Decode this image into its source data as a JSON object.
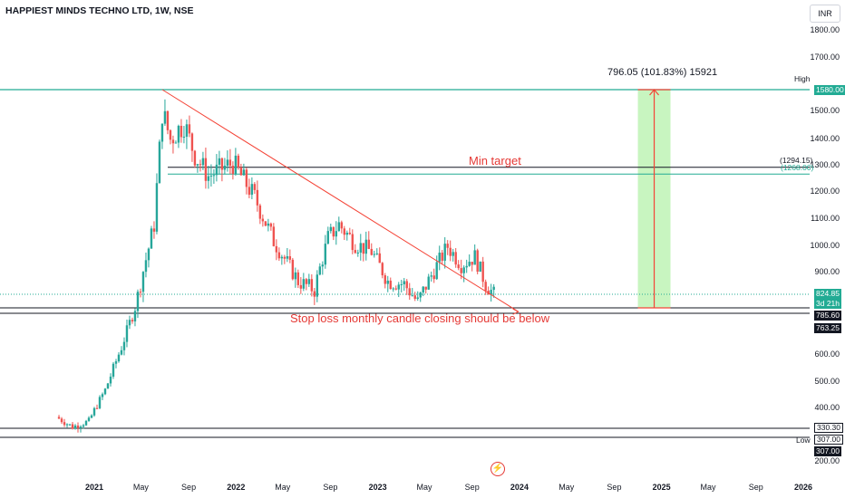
{
  "header": {
    "title": "HAPPIEST MINDS TECHNO LTD, 1W, NSE",
    "currency": "INR"
  },
  "chart_data": {
    "type": "candlestick",
    "symbol": "HAPPIEST MINDS TECHNO LTD",
    "interval": "1W",
    "exchange": "NSE",
    "currency": "INR",
    "y_axis": {
      "ticks": [
        1800,
        1700,
        1500,
        1400,
        1300,
        1200,
        1100,
        1000,
        900,
        600,
        500,
        400,
        200
      ],
      "tick_labels": [
        "1800.00",
        "1700.00",
        "1500.00",
        "1400.00",
        "1300.00",
        "1200.00",
        "1100.00",
        "1000.00",
        "900.00",
        "600.00",
        "500.00",
        "400.00",
        "200.00"
      ],
      "range": [
        190,
        1850
      ]
    },
    "x_axis": {
      "labels": [
        {
          "date": "2021-01",
          "text": "2021",
          "year": true
        },
        {
          "date": "2021-05",
          "text": "May",
          "year": false
        },
        {
          "date": "2021-09",
          "text": "Sep",
          "year": false
        },
        {
          "date": "2022-01",
          "text": "2022",
          "year": true
        },
        {
          "date": "2022-05",
          "text": "May",
          "year": false
        },
        {
          "date": "2022-09",
          "text": "Sep",
          "year": false
        },
        {
          "date": "2023-01",
          "text": "2023",
          "year": true
        },
        {
          "date": "2023-05",
          "text": "May",
          "year": false
        },
        {
          "date": "2023-09",
          "text": "Sep",
          "year": false
        },
        {
          "date": "2024-01",
          "text": "2024",
          "year": true
        },
        {
          "date": "2024-05",
          "text": "May",
          "year": false
        },
        {
          "date": "2024-09",
          "text": "Sep",
          "year": false
        },
        {
          "date": "2025-01",
          "text": "2025",
          "year": true
        },
        {
          "date": "2025-05",
          "text": "May",
          "year": false
        },
        {
          "date": "2025-09",
          "text": "Sep",
          "year": false
        },
        {
          "date": "2026-01",
          "text": "2026",
          "year": true
        }
      ]
    },
    "price_path": [
      {
        "date": "2020-09-25",
        "value": 370
      },
      {
        "date": "2020-11-06",
        "value": 335
      },
      {
        "date": "2020-12-18",
        "value": 355
      },
      {
        "date": "2021-01-29",
        "value": 470
      },
      {
        "date": "2021-03-12",
        "value": 630
      },
      {
        "date": "2021-04-23",
        "value": 820
      },
      {
        "date": "2021-06-04",
        "value": 1080
      },
      {
        "date": "2021-06-25",
        "value": 1500
      },
      {
        "date": "2021-07-16",
        "value": 1400
      },
      {
        "date": "2021-08-20",
        "value": 1460
      },
      {
        "date": "2021-09-17",
        "value": 1340
      },
      {
        "date": "2021-10-22",
        "value": 1260
      },
      {
        "date": "2021-11-26",
        "value": 1290
      },
      {
        "date": "2021-12-24",
        "value": 1310
      },
      {
        "date": "2022-02-18",
        "value": 1180
      },
      {
        "date": "2022-04-08",
        "value": 1020
      },
      {
        "date": "2022-06-10",
        "value": 870
      },
      {
        "date": "2022-07-22",
        "value": 840
      },
      {
        "date": "2022-08-26",
        "value": 1030
      },
      {
        "date": "2022-09-23",
        "value": 1080
      },
      {
        "date": "2022-11-04",
        "value": 1010
      },
      {
        "date": "2022-12-16",
        "value": 980
      },
      {
        "date": "2023-01-27",
        "value": 870
      },
      {
        "date": "2023-03-10",
        "value": 860
      },
      {
        "date": "2023-04-14",
        "value": 800
      },
      {
        "date": "2023-05-19",
        "value": 890
      },
      {
        "date": "2023-06-30",
        "value": 1000
      },
      {
        "date": "2023-08-04",
        "value": 930
      },
      {
        "date": "2023-09-08",
        "value": 960
      },
      {
        "date": "2023-10-06",
        "value": 860
      },
      {
        "date": "2023-10-27",
        "value": 824.85
      }
    ],
    "levels": {
      "high": {
        "label": "High",
        "value_label": "1580.00",
        "value": 1580
      },
      "min_target": {
        "label": "(1294.15)",
        "value": 1294.15
      },
      "min_target_2": {
        "label": "(1268.00)",
        "value": 1268
      },
      "last_price": {
        "label": "824.85",
        "value": 824.85,
        "countdown": "3d 21h"
      },
      "stop_line_1": {
        "label": "785.60",
        "value": 785.6
      },
      "stop_line_2": {
        "label": "763.25",
        "value": 763.25
      },
      "support_1": {
        "label": "330.30",
        "value": 330.3
      },
      "low": {
        "label": "Low",
        "value_label": "307.00",
        "value": 307
      }
    },
    "trendline": {
      "start": {
        "date": "2021-06-25",
        "value": 1580
      },
      "end": {
        "date": "2023-12-29",
        "value": 770
      }
    },
    "projection": {
      "from": {
        "date": "2024-11-01",
        "value": 785.6
      },
      "to": {
        "date": "2025-01-24",
        "value": 1580
      }
    },
    "annotations": {
      "measure": "796.05 (101.83%) 15921",
      "min_target": "Min target",
      "stop_loss": "Stop loss monthly candle closing should be below"
    },
    "colors": {
      "up": "#26a69a",
      "down": "#ef5350",
      "level_teal": "#22ab94",
      "level_black": "#131722",
      "trendline": "#f44336",
      "projection_fill": "#c8f5c0",
      "text_red": "#e53935"
    }
  }
}
